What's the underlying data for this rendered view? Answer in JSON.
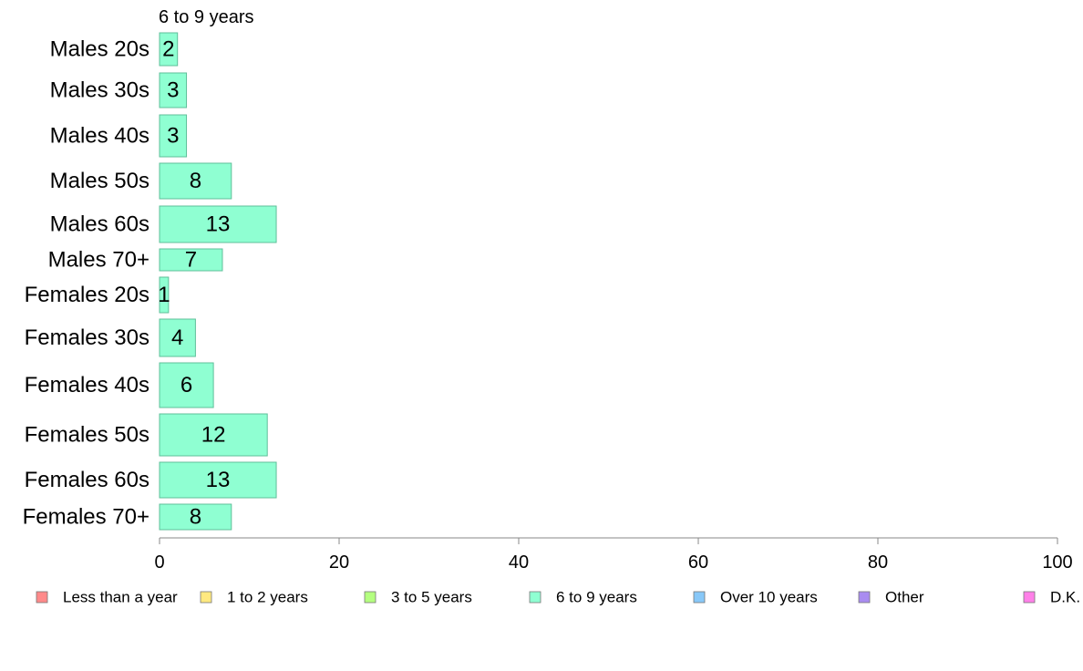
{
  "chart_data": {
    "type": "bar",
    "orientation": "horizontal",
    "series_title": "6 to 9 years",
    "categories": [
      "Males 20s",
      "Males 30s",
      "Males 40s",
      "Males 50s",
      "Males 60s",
      "Males 70+",
      "Females 20s",
      "Females 30s",
      "Females 40s",
      "Females 50s",
      "Females 60s",
      "Females 70+"
    ],
    "values": [
      2,
      3,
      3,
      8,
      13,
      7,
      1,
      4,
      6,
      12,
      13,
      8
    ],
    "bar_labels": [
      "2",
      "3",
      "3",
      "8",
      "13",
      "7",
      "1",
      "4",
      "6",
      "12",
      "13",
      "8"
    ],
    "bar_color": "#8fffd2",
    "xlim": [
      0,
      100
    ],
    "x_ticks": [
      0,
      20,
      40,
      60,
      80,
      100
    ],
    "x_tick_labels": [
      "0",
      "20",
      "40",
      "60",
      "80",
      "100"
    ],
    "grid": false,
    "legend_position": "bottom",
    "legend": [
      {
        "label": "Less than a year",
        "color": "#ff8a8a"
      },
      {
        "label": "1 to 2 years",
        "color": "#ffe980"
      },
      {
        "label": "3 to 5 years",
        "color": "#b4ff80"
      },
      {
        "label": "6 to 9 years",
        "color": "#8fffd2"
      },
      {
        "label": "Over 10 years",
        "color": "#88c8f8"
      },
      {
        "label": "Other",
        "color": "#a98cf0"
      },
      {
        "label": "D.K.",
        "color": "#ff80e8"
      }
    ]
  }
}
